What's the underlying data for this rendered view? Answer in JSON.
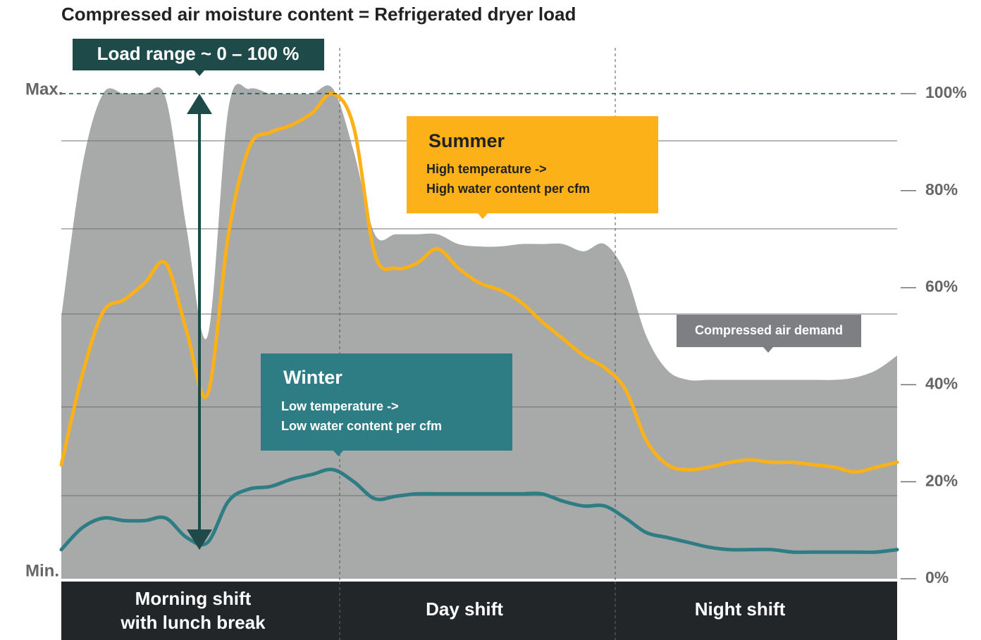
{
  "chart_data": {
    "type": "line",
    "title": "Compressed air moisture content = Refrigerated dryer load",
    "y_max_label": "Max.",
    "y_min_label": "Min.",
    "load_range_label": "Load range ~ 0 – 100 %",
    "summer_callout": {
      "title": "Summer",
      "lines": [
        "High temperature ->",
        "High water content per cfm"
      ]
    },
    "winter_callout": {
      "title": "Winter",
      "lines": [
        "Low temperature ->",
        "Low water content per cfm"
      ]
    },
    "demand_callout": "Compressed air demand",
    "shifts": [
      [
        "Morning shift",
        "with lunch break"
      ],
      [
        "Day shift"
      ],
      [
        "Night shift"
      ]
    ],
    "ylim": [
      0,
      100
    ],
    "yticks": [
      {
        "value": 0,
        "label": "0%"
      },
      {
        "value": 20,
        "label": "20%"
      },
      {
        "value": 40,
        "label": "40%"
      },
      {
        "value": 60,
        "label": "60%"
      },
      {
        "value": 80,
        "label": "80%"
      },
      {
        "value": 100,
        "label": "100%"
      }
    ],
    "series": [
      {
        "name": "Compressed air demand",
        "color": "#a7aaa9",
        "fill": true,
        "values": [
          54,
          85,
          100,
          100,
          100,
          99,
          72,
          50,
          97,
          101,
          100,
          100,
          100,
          101,
          88,
          71,
          71,
          71,
          71,
          69,
          68.5,
          68.5,
          69,
          69,
          69,
          67.5,
          69,
          63,
          50,
          43,
          41,
          41,
          41,
          41,
          41,
          41,
          41,
          41,
          41.5,
          43,
          46
        ]
      },
      {
        "name": "Summer",
        "color": "#fbb117",
        "fill": false,
        "values": [
          23.5,
          42,
          55,
          57.5,
          61,
          65,
          51,
          38,
          71,
          89,
          92,
          93.5,
          96,
          100,
          93,
          67,
          64,
          65,
          68,
          64,
          61,
          59.5,
          57,
          53,
          49.5,
          46,
          43.5,
          39,
          28.5,
          23.5,
          22.5,
          23,
          24,
          24.5,
          24,
          24,
          23.5,
          23,
          22,
          23,
          24
        ]
      },
      {
        "name": "Winter",
        "color": "#2e7d84",
        "fill": false,
        "values": [
          6,
          10.5,
          12.5,
          12,
          12,
          12.5,
          8.5,
          7.5,
          16,
          18.5,
          19,
          20.5,
          21.5,
          22.5,
          20,
          16.5,
          17,
          17.5,
          17.5,
          17.5,
          17.5,
          17.5,
          17.5,
          17.5,
          16,
          15,
          15,
          12.5,
          9.5,
          8.5,
          7.5,
          6.5,
          6,
          6,
          6,
          5.5,
          5.5,
          5.5,
          5.5,
          5.5,
          6
        ]
      }
    ]
  }
}
